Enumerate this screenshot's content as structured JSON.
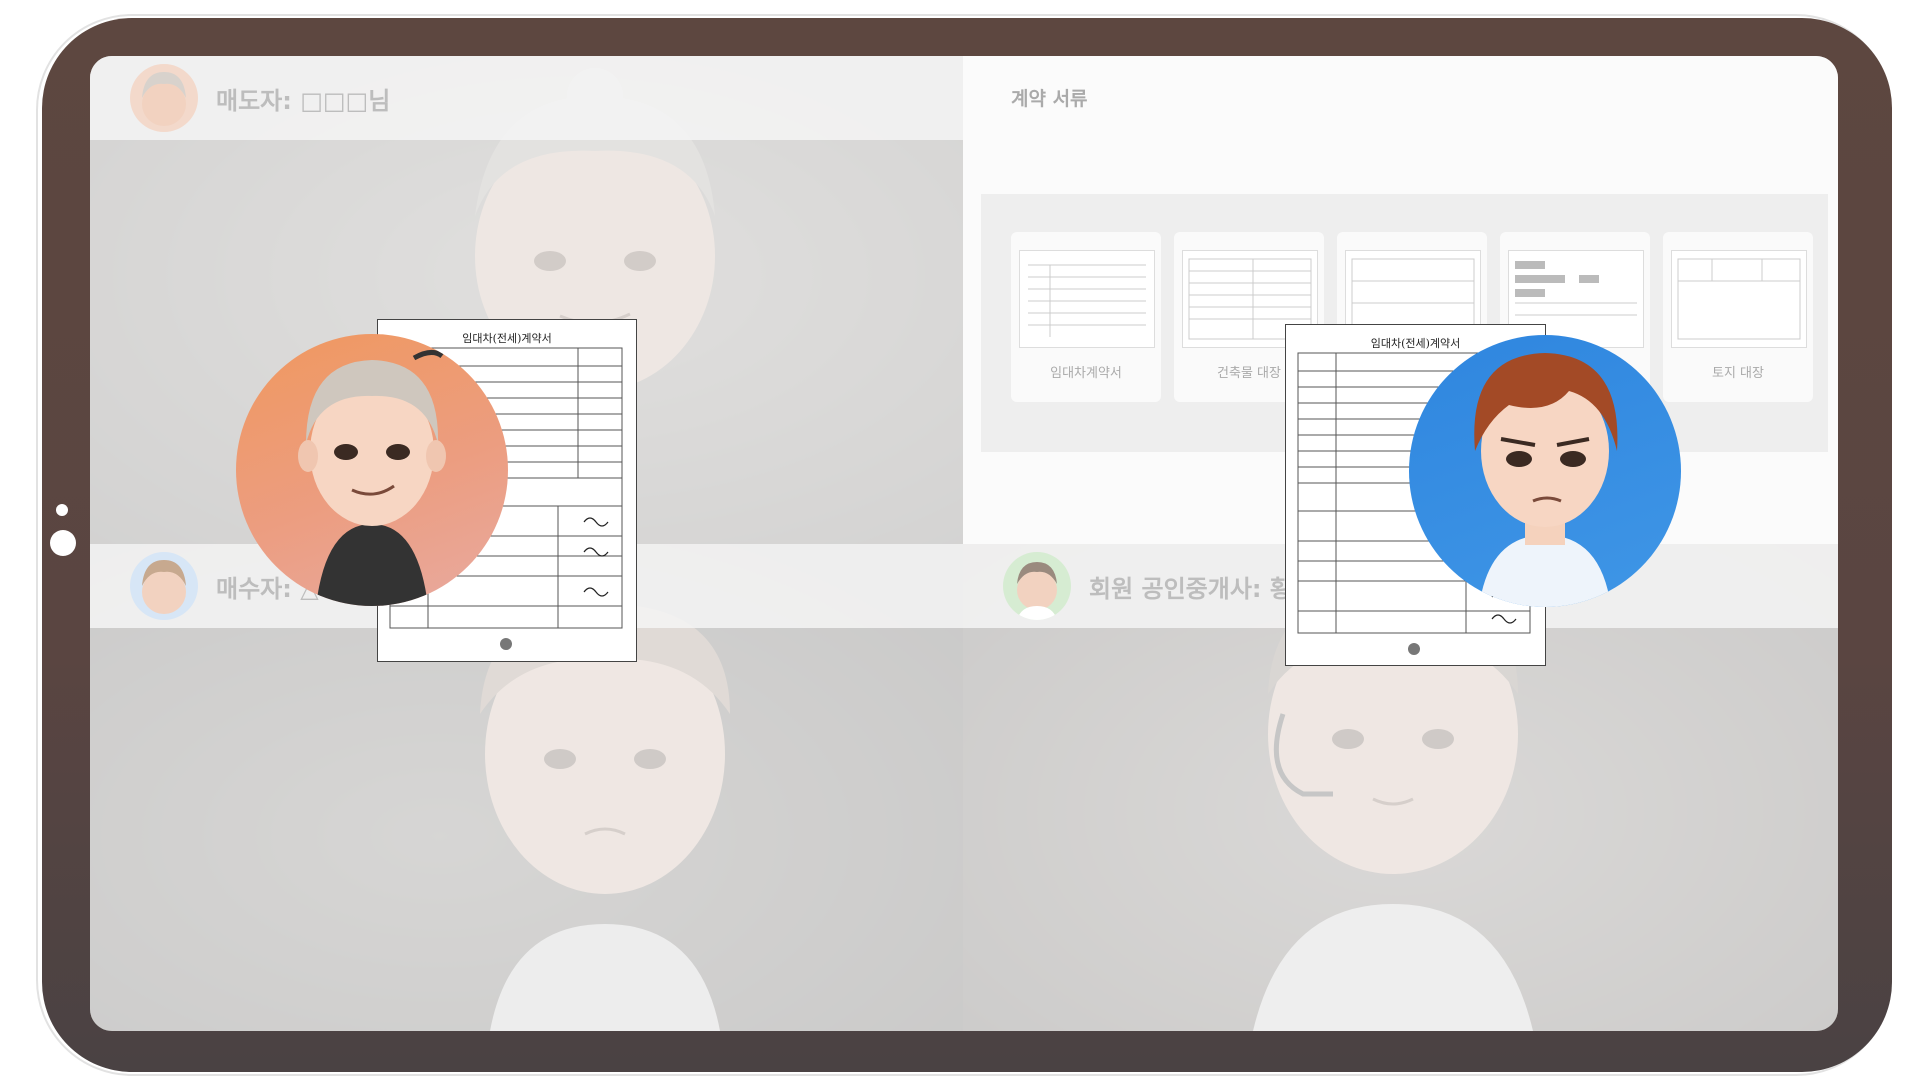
{
  "seller": {
    "label": "매도자: □□□님"
  },
  "buyer": {
    "label": "매수자: △"
  },
  "agent": {
    "label": "회원 공인중개사: 황"
  },
  "documents": {
    "title": "계약 서류",
    "items": [
      {
        "name": "임대차계약서"
      },
      {
        "name": "건축물 대장"
      },
      {
        "name": ""
      },
      {
        "name": ""
      },
      {
        "name": "토지 대장"
      }
    ]
  },
  "contract": {
    "title": "임대차(전세)계약서"
  },
  "colors": {
    "frame": "#5d4740",
    "seller_avatar_bg": "#ee9a6e",
    "agent_avatar_bg": "#3b8fe0"
  }
}
